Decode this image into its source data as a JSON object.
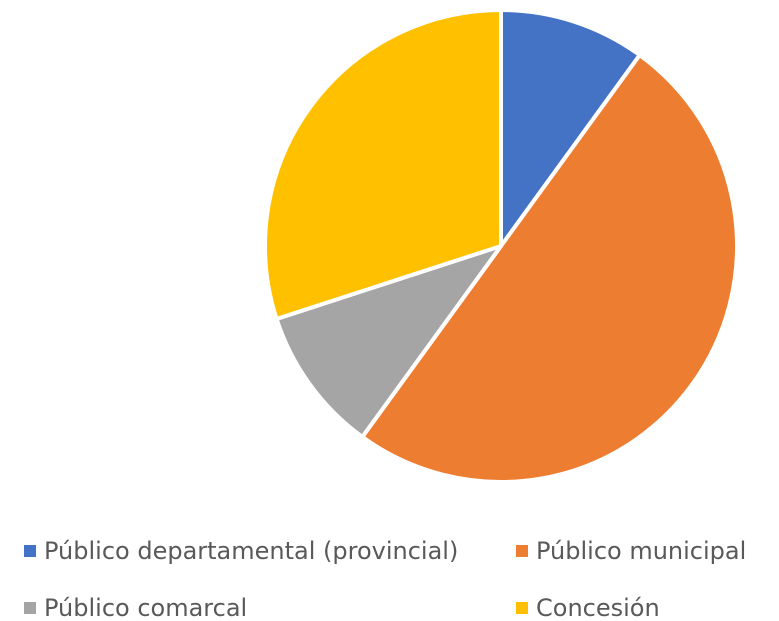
{
  "chart_data": {
    "type": "pie",
    "title": "",
    "categories": [
      "Público departamental (provincial)",
      "Público municipal",
      "Público comarcal",
      "Concesión"
    ],
    "values": [
      10,
      50,
      10,
      30
    ],
    "colors": [
      "#4472C4",
      "#ED7D31",
      "#A5A5A5",
      "#FFC000"
    ],
    "start_angle_deg": 0,
    "direction": "clockwise",
    "legend_position": "bottom"
  }
}
